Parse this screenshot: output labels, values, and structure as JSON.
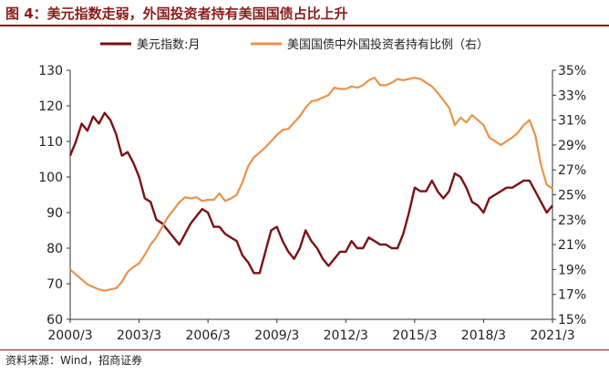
{
  "header": {
    "title": "图 4：美元指数走弱，外国投资者持有美国国债占比上升"
  },
  "footer": {
    "source": "资料来源：Wind，招商证券"
  },
  "colors": {
    "usd_index": "#7b1113",
    "foreign_share": "#e8934a",
    "title": "#8b1a1a"
  },
  "chart_data": {
    "type": "line",
    "title": "",
    "xlabel": "",
    "ylabel_left": "",
    "ylabel_right": "",
    "ylim_left": [
      60,
      130
    ],
    "ylim_right": [
      15,
      35
    ],
    "left_ticks": [
      "60",
      "70",
      "80",
      "90",
      "100",
      "110",
      "120",
      "130"
    ],
    "right_ticks": [
      "15%",
      "17%",
      "19%",
      "21%",
      "23%",
      "25%",
      "27%",
      "29%",
      "31%",
      "33%",
      "35%"
    ],
    "x_ticks": [
      "2000/3",
      "2003/3",
      "2006/3",
      "2009/3",
      "2012/3",
      "2015/3",
      "2018/3",
      "2021/3"
    ],
    "x_range": [
      "2000/3",
      "2021/3"
    ],
    "legend_position": "top",
    "grid": false,
    "series": [
      {
        "name": "美元指数:月",
        "axis": "left",
        "x": [
          "2000/3",
          "2000/6",
          "2000/9",
          "2000/12",
          "2001/3",
          "2001/6",
          "2001/9",
          "2001/12",
          "2002/3",
          "2002/6",
          "2002/9",
          "2002/12",
          "2003/3",
          "2003/6",
          "2003/9",
          "2003/12",
          "2004/3",
          "2004/6",
          "2004/9",
          "2004/12",
          "2005/3",
          "2005/6",
          "2005/9",
          "2005/12",
          "2006/3",
          "2006/6",
          "2006/9",
          "2006/12",
          "2007/3",
          "2007/6",
          "2007/9",
          "2007/12",
          "2008/3",
          "2008/6",
          "2008/9",
          "2008/12",
          "2009/3",
          "2009/6",
          "2009/9",
          "2009/12",
          "2010/3",
          "2010/6",
          "2010/9",
          "2010/12",
          "2011/3",
          "2011/6",
          "2011/9",
          "2011/12",
          "2012/3",
          "2012/6",
          "2012/9",
          "2012/12",
          "2013/3",
          "2013/6",
          "2013/9",
          "2013/12",
          "2014/3",
          "2014/6",
          "2014/9",
          "2014/12",
          "2015/3",
          "2015/6",
          "2015/9",
          "2015/12",
          "2016/3",
          "2016/6",
          "2016/9",
          "2016/12",
          "2017/3",
          "2017/6",
          "2017/9",
          "2017/12",
          "2018/3",
          "2018/6",
          "2018/9",
          "2018/12",
          "2019/3",
          "2019/6",
          "2019/9",
          "2019/12",
          "2020/3",
          "2020/6",
          "2020/9",
          "2020/12",
          "2021/3"
        ],
        "values": [
          106,
          110,
          115,
          113,
          117,
          115,
          118,
          116,
          112,
          106,
          107,
          104,
          100,
          94,
          93,
          88,
          87,
          85,
          83,
          81,
          84,
          87,
          89,
          91,
          90,
          86,
          86,
          84,
          83,
          82,
          78,
          76,
          73,
          73,
          79,
          85,
          86,
          82,
          79,
          77,
          80,
          85,
          82,
          80,
          77,
          75,
          77,
          79,
          79,
          82,
          80,
          80,
          83,
          82,
          81,
          81,
          80,
          80,
          84,
          90,
          97,
          96,
          96,
          99,
          96,
          94,
          96,
          101,
          100,
          97,
          93,
          92,
          90,
          94,
          95,
          96,
          97,
          97,
          98,
          99,
          99,
          96,
          93,
          90,
          92
        ]
      },
      {
        "name": "美国国债中外国投资者持有比例（右）",
        "axis": "right",
        "x": [
          "2000/3",
          "2000/6",
          "2000/9",
          "2000/12",
          "2001/3",
          "2001/6",
          "2001/9",
          "2001/12",
          "2002/3",
          "2002/6",
          "2002/9",
          "2002/12",
          "2003/3",
          "2003/6",
          "2003/9",
          "2003/12",
          "2004/3",
          "2004/6",
          "2004/9",
          "2004/12",
          "2005/3",
          "2005/6",
          "2005/9",
          "2005/12",
          "2006/3",
          "2006/6",
          "2006/9",
          "2006/12",
          "2007/3",
          "2007/6",
          "2007/9",
          "2007/12",
          "2008/3",
          "2008/6",
          "2008/9",
          "2008/12",
          "2009/3",
          "2009/6",
          "2009/9",
          "2009/12",
          "2010/3",
          "2010/6",
          "2010/9",
          "2010/12",
          "2011/3",
          "2011/6",
          "2011/9",
          "2011/12",
          "2012/3",
          "2012/6",
          "2012/9",
          "2012/12",
          "2013/3",
          "2013/6",
          "2013/9",
          "2013/12",
          "2014/3",
          "2014/6",
          "2014/9",
          "2014/12",
          "2015/3",
          "2015/6",
          "2015/9",
          "2015/12",
          "2016/3",
          "2016/6",
          "2016/9",
          "2016/12",
          "2017/3",
          "2017/6",
          "2017/9",
          "2017/12",
          "2018/3",
          "2018/6",
          "2018/9",
          "2018/12",
          "2019/3",
          "2019/6",
          "2019/9",
          "2019/12",
          "2020/3",
          "2020/6",
          "2020/9",
          "2020/12",
          "2021/3"
        ],
        "values": [
          19.0,
          18.6,
          18.2,
          17.8,
          17.6,
          17.4,
          17.3,
          17.4,
          17.5,
          18.0,
          18.8,
          19.2,
          19.5,
          20.2,
          21.0,
          21.6,
          22.4,
          23.2,
          23.8,
          24.4,
          24.8,
          24.7,
          24.8,
          24.5,
          24.6,
          24.6,
          25.1,
          24.5,
          24.7,
          25.0,
          26.0,
          27.3,
          28.0,
          28.4,
          28.8,
          29.3,
          29.8,
          30.2,
          30.3,
          30.8,
          31.3,
          32.0,
          32.5,
          32.6,
          32.8,
          33.0,
          33.6,
          33.5,
          33.5,
          33.7,
          33.6,
          33.8,
          34.2,
          34.4,
          33.8,
          33.8,
          34.0,
          34.3,
          34.2,
          34.3,
          34.4,
          34.3,
          34.0,
          33.7,
          33.2,
          32.6,
          32.0,
          30.6,
          31.2,
          30.8,
          31.4,
          31.0,
          30.6,
          29.6,
          29.3,
          29.0,
          29.3,
          29.6,
          30.0,
          30.6,
          31.0,
          29.8,
          27.4,
          25.8,
          25.5
        ]
      }
    ]
  }
}
